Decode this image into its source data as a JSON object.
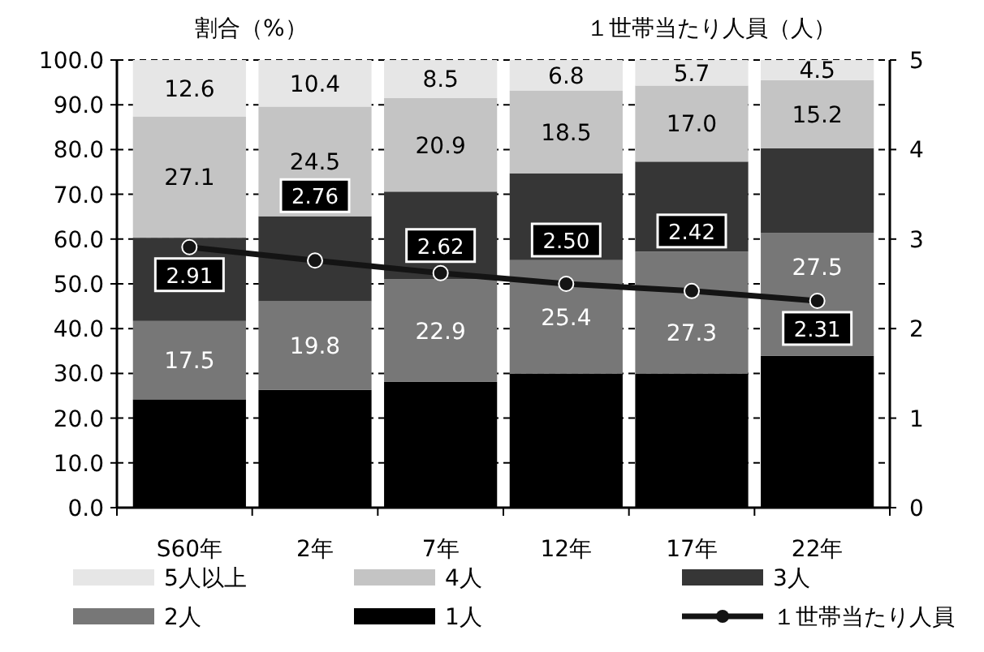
{
  "chart_data": {
    "type": "bar",
    "stacked": true,
    "ylabel": "割合（%）",
    "y2label": "１世帯当たり人員（人）",
    "categories": [
      "S60年",
      "2年",
      "7年",
      "12年",
      "17年",
      "22年"
    ],
    "series": [
      {
        "name": "1人",
        "color": "#000000",
        "values": [
          24.2,
          26.3,
          28.1,
          29.9,
          29.9,
          33.9
        ],
        "value_labels": [
          null,
          null,
          null,
          null,
          null,
          null
        ]
      },
      {
        "name": "2人",
        "color": "#777777",
        "values": [
          17.5,
          19.8,
          22.9,
          25.4,
          27.3,
          27.5
        ],
        "value_labels": [
          "17.5",
          "19.8",
          "22.9",
          "25.4",
          "27.3",
          "27.5"
        ]
      },
      {
        "name": "3人",
        "color": "#363636",
        "values": [
          18.6,
          19.0,
          19.6,
          19.4,
          20.1,
          18.9
        ],
        "value_labels": [
          null,
          null,
          null,
          null,
          null,
          null
        ]
      },
      {
        "name": "4人",
        "color": "#c4c4c4",
        "values": [
          27.1,
          24.5,
          20.9,
          18.5,
          17.0,
          15.2
        ],
        "value_labels": [
          "27.1",
          "24.5",
          "20.9",
          "18.5",
          "17.0",
          "15.2"
        ]
      },
      {
        "name": "5人以上",
        "color": "#e6e6e6",
        "values": [
          12.6,
          10.4,
          8.5,
          6.8,
          5.7,
          4.5
        ],
        "value_labels": [
          "12.6",
          "10.4",
          "8.5",
          "6.8",
          "5.7",
          "4.5"
        ]
      },
      {
        "name": "１世帯当たり人員",
        "type": "line",
        "axis": "y2",
        "color": "#141414",
        "marker": "circle",
        "values": [
          2.91,
          2.76,
          2.62,
          2.5,
          2.42,
          2.31
        ],
        "value_labels": [
          "2.91",
          "2.76",
          "2.62",
          "2.50",
          "2.42",
          "2.31"
        ]
      }
    ],
    "ylim": [
      0,
      100
    ],
    "yticks": [
      {
        "value": 0,
        "label": "0.0"
      },
      {
        "value": 10,
        "label": "10.0"
      },
      {
        "value": 20,
        "label": "20.0"
      },
      {
        "value": 30,
        "label": "30.0"
      },
      {
        "value": 40,
        "label": "40.0"
      },
      {
        "value": 50,
        "label": "50.0"
      },
      {
        "value": 60,
        "label": "60.0"
      },
      {
        "value": 70,
        "label": "70.0"
      },
      {
        "value": 80,
        "label": "80.0"
      },
      {
        "value": 90,
        "label": "90.0"
      },
      {
        "value": 100,
        "label": "100.0"
      }
    ],
    "y2lim": [
      0,
      5
    ],
    "y2ticks": [
      0,
      1,
      2,
      3,
      4,
      5
    ],
    "grid": "y",
    "legend": "bottom"
  }
}
